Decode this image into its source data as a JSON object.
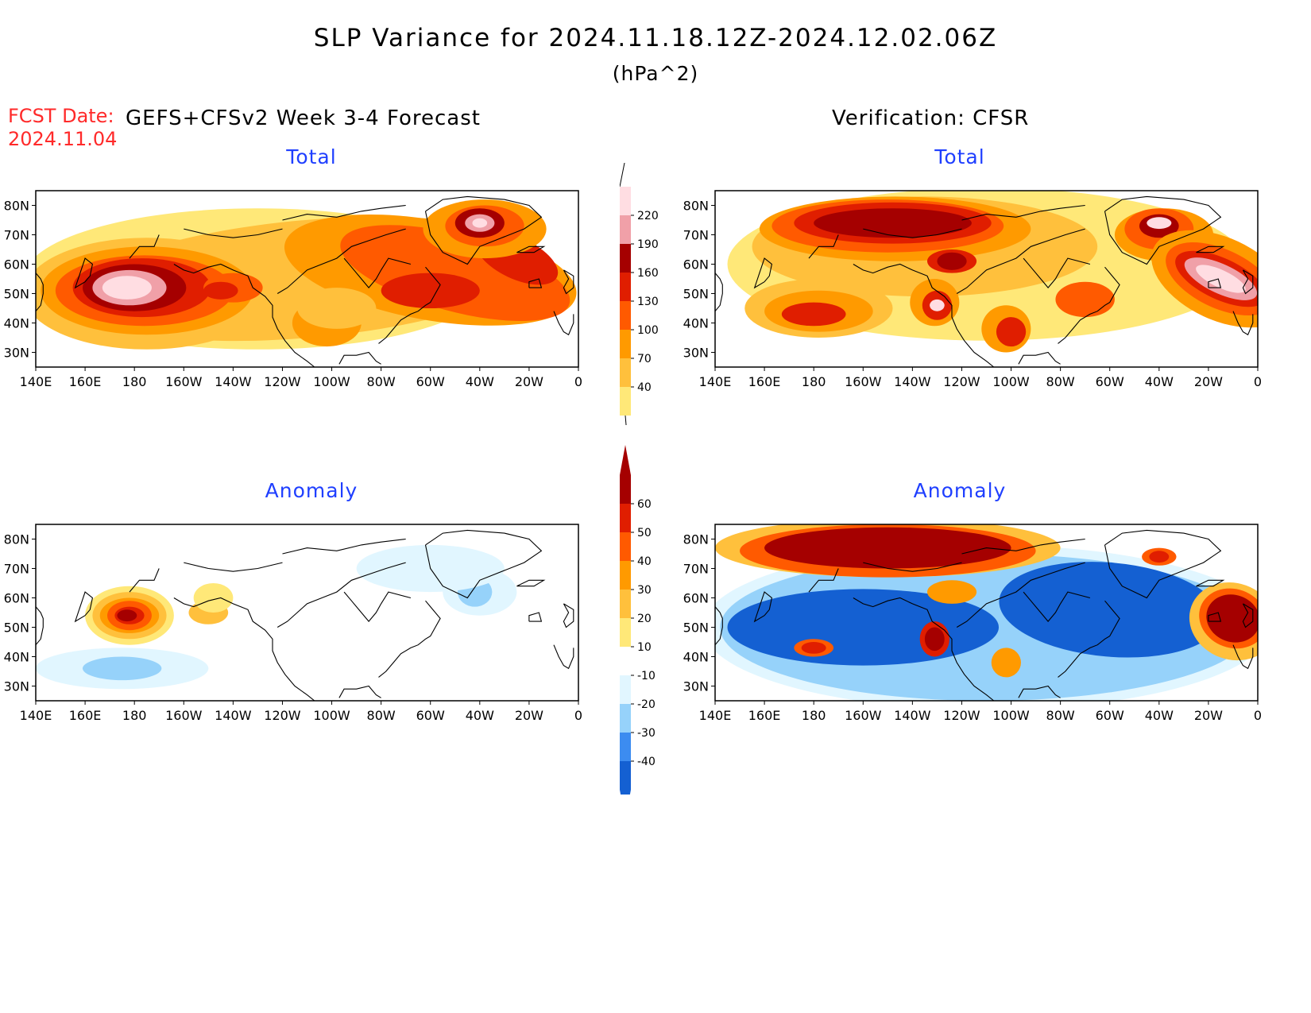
{
  "header": {
    "title": "SLP Variance for 2024.11.18.12Z-2024.12.02.06Z",
    "units": "(hPa^2)",
    "fcst_date_label": "FCST Date:",
    "fcst_date_value": "2024.11.04",
    "forecast_label": "GEFS+CFSv2 Week 3-4 Forecast",
    "verification_label": "Verification: CFSR"
  },
  "panels": {
    "fc_total_title": "Total",
    "ver_total_title": "Total",
    "fc_anom_title": "Anomaly",
    "ver_anom_title": "Anomaly"
  },
  "axes": {
    "lon_labels": [
      "140E",
      "160E",
      "180",
      "160W",
      "140W",
      "120W",
      "100W",
      "80W",
      "60W",
      "40W",
      "20W",
      "0"
    ],
    "lat_labels": [
      "80N",
      "70N",
      "60N",
      "50N",
      "40N",
      "30N"
    ]
  },
  "colorbar_total": {
    "labels": [
      "40",
      "70",
      "100",
      "130",
      "160",
      "190",
      "220"
    ],
    "colors": [
      "#ffe878",
      "#ffc03c",
      "#ff9a00",
      "#ff5a00",
      "#e01e00",
      "#a50000",
      "#f0a0a8",
      "#ffdde2"
    ]
  },
  "colorbar_anomaly": {
    "labels": [
      "60",
      "50",
      "40",
      "30",
      "20",
      "10",
      "-10",
      "-20",
      "-30",
      "-40"
    ],
    "colors": [
      "#a50000",
      "#e01e00",
      "#ff5a00",
      "#ff9a00",
      "#ffc03c",
      "#ffe878",
      "#ffffff",
      "#e1f6ff",
      "#96d2fa",
      "#3c8cf0",
      "#1460d2"
    ]
  },
  "chart_data": [
    {
      "type": "heatmap",
      "panel": "forecast-total",
      "title": "Total",
      "units": "hPa^2",
      "x_range": [
        "140E",
        "0"
      ],
      "y_range": [
        "25N",
        "85N"
      ],
      "levels": [
        40,
        70,
        100,
        130,
        160,
        190,
        220
      ],
      "maxima": [
        {
          "lon": "175E",
          "lat": "52N",
          "value": 220
        },
        {
          "lon": "40W",
          "lat": "74N",
          "value": 220
        },
        {
          "lon": "145W",
          "lat": "50N",
          "value": 160
        },
        {
          "lon": "60W",
          "lat": "50N",
          "value": 160
        },
        {
          "lon": "20W",
          "lat": "60N",
          "value": 160
        }
      ]
    },
    {
      "type": "heatmap",
      "panel": "verification-total",
      "title": "Total",
      "units": "hPa^2",
      "x_range": [
        "140E",
        "0"
      ],
      "y_range": [
        "25N",
        "85N"
      ],
      "levels": [
        40,
        70,
        100,
        130,
        160,
        190,
        220
      ],
      "maxima": [
        {
          "lon": "150W",
          "lat": "73N",
          "value": 190
        },
        {
          "lon": "40W",
          "lat": "74N",
          "value": 220
        },
        {
          "lon": "20W",
          "lat": "55N",
          "value": 220
        },
        {
          "lon": "130W",
          "lat": "46N",
          "value": 220
        },
        {
          "lon": "180",
          "lat": "43N",
          "value": 160
        },
        {
          "lon": "100W",
          "lat": "37N",
          "value": 160
        }
      ]
    },
    {
      "type": "heatmap",
      "panel": "forecast-anomaly",
      "title": "Anomaly",
      "units": "hPa^2",
      "x_range": [
        "140E",
        "0"
      ],
      "y_range": [
        "25N",
        "85N"
      ],
      "levels": [
        -40,
        -30,
        -20,
        -10,
        10,
        20,
        30,
        40,
        50,
        60
      ],
      "maxima": [
        {
          "lon": "178E",
          "lat": "54N",
          "value": 60
        },
        {
          "lon": "170E",
          "lat": "37N",
          "value": -30
        }
      ]
    },
    {
      "type": "heatmap",
      "panel": "verification-anomaly",
      "title": "Anomaly",
      "units": "hPa^2",
      "x_range": [
        "140E",
        "0"
      ],
      "y_range": [
        "25N",
        "85N"
      ],
      "levels": [
        -40,
        -30,
        -20,
        -10,
        10,
        20,
        30,
        40,
        50,
        60
      ],
      "maxima": [
        {
          "lon": "150W",
          "lat": "75N",
          "value": 60
        },
        {
          "lon": "130W",
          "lat": "46N",
          "value": 60
        },
        {
          "lon": "15W",
          "lat": "55N",
          "value": 60
        },
        {
          "lon": "140W",
          "lat": "45N",
          "value": -40
        },
        {
          "lon": "60W",
          "lat": "55N",
          "value": -40
        }
      ]
    }
  ]
}
